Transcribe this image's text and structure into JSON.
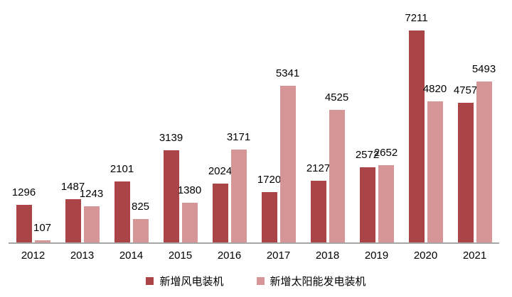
{
  "chart_data": {
    "type": "bar",
    "title": "",
    "xlabel": "",
    "ylabel": "",
    "categories": [
      "2012",
      "2013",
      "2014",
      "2015",
      "2016",
      "2017",
      "2018",
      "2019",
      "2020",
      "2021"
    ],
    "series": [
      {
        "key": "wind",
        "name": "新增风电装机",
        "color": "#aa4446",
        "values": [
          1296,
          1487,
          2101,
          3139,
          2024,
          1720,
          2127,
          2572,
          7211,
          4757
        ]
      },
      {
        "key": "solar",
        "name": "新增太阳能发电装机",
        "color": "#d69698",
        "values": [
          107,
          1243,
          825,
          1380,
          3171,
          5341,
          4525,
          2652,
          4820,
          5493
        ]
      }
    ],
    "ylim": [
      0,
      7600
    ],
    "grid": false,
    "y_axis_visible": false,
    "data_labels": true,
    "legend_position": "bottom",
    "axis_line_color": "#a6a6a6",
    "label_color": "#000000",
    "background_color": "#ffffff"
  }
}
